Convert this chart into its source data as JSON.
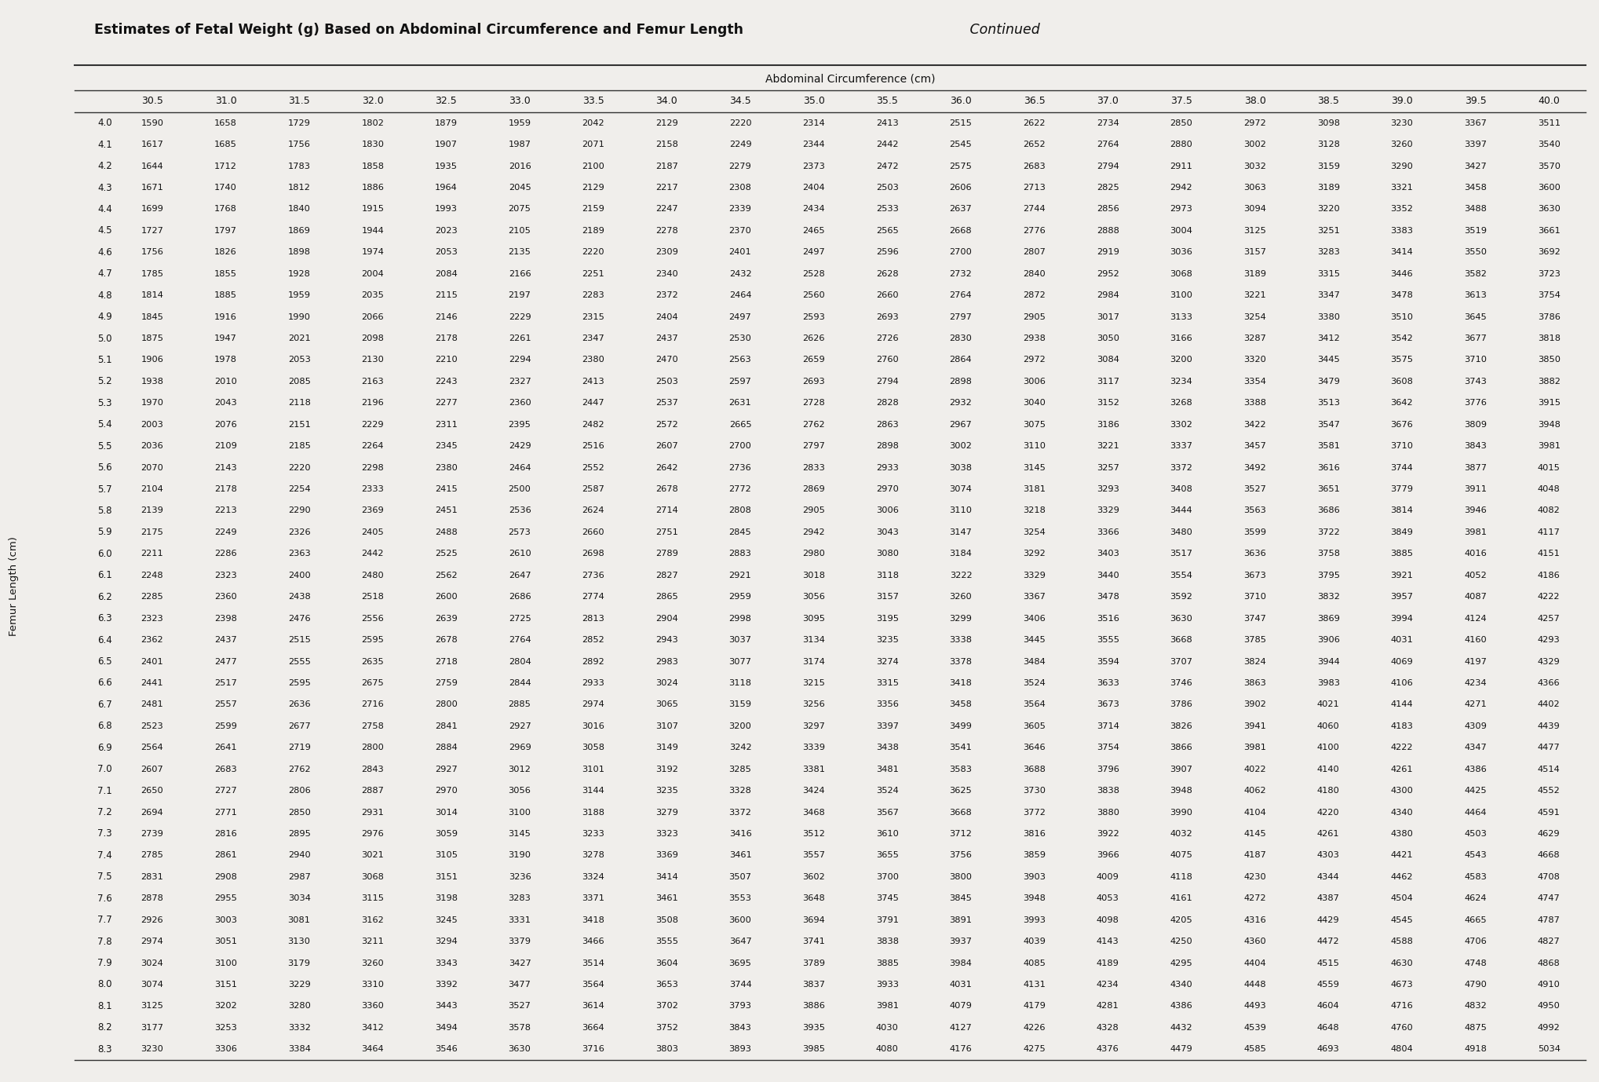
{
  "title_bold": "Estimates of Fetal Weight (g) Based on Abdominal Circumference and Femur Length",
  "title_italic": "Continued",
  "col_header_label": "Abdominal Circumference (cm)",
  "row_header_label": "Femur Length (cm)",
  "col_headers": [
    "30.5",
    "31.0",
    "31.5",
    "32.0",
    "32.5",
    "33.0",
    "33.5",
    "34.0",
    "34.5",
    "35.0",
    "35.5",
    "36.0",
    "36.5",
    "37.0",
    "37.5",
    "38.0",
    "38.5",
    "39.0",
    "39.5",
    "40.0"
  ],
  "row_headers": [
    "4.0",
    "4.1",
    "4.2",
    "4.3",
    "4.4",
    "4.5",
    "4.6",
    "4.7",
    "4.8",
    "4.9",
    "5.0",
    "5.1",
    "5.2",
    "5.3",
    "5.4",
    "5.5",
    "5.6",
    "5.7",
    "5.8",
    "5.9",
    "6.0",
    "6.1",
    "6.2",
    "6.3",
    "6.4",
    "6.5",
    "6.6",
    "6.7",
    "6.8",
    "6.9",
    "7.0",
    "7.1",
    "7.2",
    "7.3",
    "7.4",
    "7.5",
    "7.6",
    "7.7",
    "7.8",
    "7.9",
    "8.0",
    "8.1",
    "8.2",
    "8.3"
  ],
  "table_data": [
    [
      1590,
      1658,
      1729,
      1802,
      1879,
      1959,
      2042,
      2129,
      2220,
      2314,
      2413,
      2515,
      2622,
      2734,
      2850,
      2972,
      3098,
      3230,
      3367,
      3511
    ],
    [
      1617,
      1685,
      1756,
      1830,
      1907,
      1987,
      2071,
      2158,
      2249,
      2344,
      2442,
      2545,
      2652,
      2764,
      2880,
      3002,
      3128,
      3260,
      3397,
      3540
    ],
    [
      1644,
      1712,
      1783,
      1858,
      1935,
      2016,
      2100,
      2187,
      2279,
      2373,
      2472,
      2575,
      2683,
      2794,
      2911,
      3032,
      3159,
      3290,
      3427,
      3570
    ],
    [
      1671,
      1740,
      1812,
      1886,
      1964,
      2045,
      2129,
      2217,
      2308,
      2404,
      2503,
      2606,
      2713,
      2825,
      2942,
      3063,
      3189,
      3321,
      3458,
      3600
    ],
    [
      1699,
      1768,
      1840,
      1915,
      1993,
      2075,
      2159,
      2247,
      2339,
      2434,
      2533,
      2637,
      2744,
      2856,
      2973,
      3094,
      3220,
      3352,
      3488,
      3630
    ],
    [
      1727,
      1797,
      1869,
      1944,
      2023,
      2105,
      2189,
      2278,
      2370,
      2465,
      2565,
      2668,
      2776,
      2888,
      3004,
      3125,
      3251,
      3383,
      3519,
      3661
    ],
    [
      1756,
      1826,
      1898,
      1974,
      2053,
      2135,
      2220,
      2309,
      2401,
      2497,
      2596,
      2700,
      2807,
      2919,
      3036,
      3157,
      3283,
      3414,
      3550,
      3692
    ],
    [
      1785,
      1855,
      1928,
      2004,
      2084,
      2166,
      2251,
      2340,
      2432,
      2528,
      2628,
      2732,
      2840,
      2952,
      3068,
      3189,
      3315,
      3446,
      3582,
      3723
    ],
    [
      1814,
      1885,
      1959,
      2035,
      2115,
      2197,
      2283,
      2372,
      2464,
      2560,
      2660,
      2764,
      2872,
      2984,
      3100,
      3221,
      3347,
      3478,
      3613,
      3754
    ],
    [
      1845,
      1916,
      1990,
      2066,
      2146,
      2229,
      2315,
      2404,
      2497,
      2593,
      2693,
      2797,
      2905,
      3017,
      3133,
      3254,
      3380,
      3510,
      3645,
      3786
    ],
    [
      1875,
      1947,
      2021,
      2098,
      2178,
      2261,
      2347,
      2437,
      2530,
      2626,
      2726,
      2830,
      2938,
      3050,
      3166,
      3287,
      3412,
      3542,
      3677,
      3818
    ],
    [
      1906,
      1978,
      2053,
      2130,
      2210,
      2294,
      2380,
      2470,
      2563,
      2659,
      2760,
      2864,
      2972,
      3084,
      3200,
      3320,
      3445,
      3575,
      3710,
      3850
    ],
    [
      1938,
      2010,
      2085,
      2163,
      2243,
      2327,
      2413,
      2503,
      2597,
      2693,
      2794,
      2898,
      3006,
      3117,
      3234,
      3354,
      3479,
      3608,
      3743,
      3882
    ],
    [
      1970,
      2043,
      2118,
      2196,
      2277,
      2360,
      2447,
      2537,
      2631,
      2728,
      2828,
      2932,
      3040,
      3152,
      3268,
      3388,
      3513,
      3642,
      3776,
      3915
    ],
    [
      2003,
      2076,
      2151,
      2229,
      2311,
      2395,
      2482,
      2572,
      2665,
      2762,
      2863,
      2967,
      3075,
      3186,
      3302,
      3422,
      3547,
      3676,
      3809,
      3948
    ],
    [
      2036,
      2109,
      2185,
      2264,
      2345,
      2429,
      2516,
      2607,
      2700,
      2797,
      2898,
      3002,
      3110,
      3221,
      3337,
      3457,
      3581,
      3710,
      3843,
      3981
    ],
    [
      2070,
      2143,
      2220,
      2298,
      2380,
      2464,
      2552,
      2642,
      2736,
      2833,
      2933,
      3038,
      3145,
      3257,
      3372,
      3492,
      3616,
      3744,
      3877,
      4015
    ],
    [
      2104,
      2178,
      2254,
      2333,
      2415,
      2500,
      2587,
      2678,
      2772,
      2869,
      2970,
      3074,
      3181,
      3293,
      3408,
      3527,
      3651,
      3779,
      3911,
      4048
    ],
    [
      2139,
      2213,
      2290,
      2369,
      2451,
      2536,
      2624,
      2714,
      2808,
      2905,
      3006,
      3110,
      3218,
      3329,
      3444,
      3563,
      3686,
      3814,
      3946,
      4082
    ],
    [
      2175,
      2249,
      2326,
      2405,
      2488,
      2573,
      2660,
      2751,
      2845,
      2942,
      3043,
      3147,
      3254,
      3366,
      3480,
      3599,
      3722,
      3849,
      3981,
      4117
    ],
    [
      2211,
      2286,
      2363,
      2442,
      2525,
      2610,
      2698,
      2789,
      2883,
      2980,
      3080,
      3184,
      3292,
      3403,
      3517,
      3636,
      3758,
      3885,
      4016,
      4151
    ],
    [
      2248,
      2323,
      2400,
      2480,
      2562,
      2647,
      2736,
      2827,
      2921,
      3018,
      3118,
      3222,
      3329,
      3440,
      3554,
      3673,
      3795,
      3921,
      4052,
      4186
    ],
    [
      2285,
      2360,
      2438,
      2518,
      2600,
      2686,
      2774,
      2865,
      2959,
      3056,
      3157,
      3260,
      3367,
      3478,
      3592,
      3710,
      3832,
      3957,
      4087,
      4222
    ],
    [
      2323,
      2398,
      2476,
      2556,
      2639,
      2725,
      2813,
      2904,
      2998,
      3095,
      3195,
      3299,
      3406,
      3516,
      3630,
      3747,
      3869,
      3994,
      4124,
      4257
    ],
    [
      2362,
      2437,
      2515,
      2595,
      2678,
      2764,
      2852,
      2943,
      3037,
      3134,
      3235,
      3338,
      3445,
      3555,
      3668,
      3785,
      3906,
      4031,
      4160,
      4293
    ],
    [
      2401,
      2477,
      2555,
      2635,
      2718,
      2804,
      2892,
      2983,
      3077,
      3174,
      3274,
      3378,
      3484,
      3594,
      3707,
      3824,
      3944,
      4069,
      4197,
      4329
    ],
    [
      2441,
      2517,
      2595,
      2675,
      2759,
      2844,
      2933,
      3024,
      3118,
      3215,
      3315,
      3418,
      3524,
      3633,
      3746,
      3863,
      3983,
      4106,
      4234,
      4366
    ],
    [
      2481,
      2557,
      2636,
      2716,
      2800,
      2885,
      2974,
      3065,
      3159,
      3256,
      3356,
      3458,
      3564,
      3673,
      3786,
      3902,
      4021,
      4144,
      4271,
      4402
    ],
    [
      2523,
      2599,
      2677,
      2758,
      2841,
      2927,
      3016,
      3107,
      3200,
      3297,
      3397,
      3499,
      3605,
      3714,
      3826,
      3941,
      4060,
      4183,
      4309,
      4439
    ],
    [
      2564,
      2641,
      2719,
      2800,
      2884,
      2969,
      3058,
      3149,
      3242,
      3339,
      3438,
      3541,
      3646,
      3754,
      3866,
      3981,
      4100,
      4222,
      4347,
      4477
    ],
    [
      2607,
      2683,
      2762,
      2843,
      2927,
      3012,
      3101,
      3192,
      3285,
      3381,
      3481,
      3583,
      3688,
      3796,
      3907,
      4022,
      4140,
      4261,
      4386,
      4514
    ],
    [
      2650,
      2727,
      2806,
      2887,
      2970,
      3056,
      3144,
      3235,
      3328,
      3424,
      3524,
      3625,
      3730,
      3838,
      3948,
      4062,
      4180,
      4300,
      4425,
      4552
    ],
    [
      2694,
      2771,
      2850,
      2931,
      3014,
      3100,
      3188,
      3279,
      3372,
      3468,
      3567,
      3668,
      3772,
      3880,
      3990,
      4104,
      4220,
      4340,
      4464,
      4591
    ],
    [
      2739,
      2816,
      2895,
      2976,
      3059,
      3145,
      3233,
      3323,
      3416,
      3512,
      3610,
      3712,
      3816,
      3922,
      4032,
      4145,
      4261,
      4380,
      4503,
      4629
    ],
    [
      2785,
      2861,
      2940,
      3021,
      3105,
      3190,
      3278,
      3369,
      3461,
      3557,
      3655,
      3756,
      3859,
      3966,
      4075,
      4187,
      4303,
      4421,
      4543,
      4668
    ],
    [
      2831,
      2908,
      2987,
      3068,
      3151,
      3236,
      3324,
      3414,
      3507,
      3602,
      3700,
      3800,
      3903,
      4009,
      4118,
      4230,
      4344,
      4462,
      4583,
      4708
    ],
    [
      2878,
      2955,
      3034,
      3115,
      3198,
      3283,
      3371,
      3461,
      3553,
      3648,
      3745,
      3845,
      3948,
      4053,
      4161,
      4272,
      4387,
      4504,
      4624,
      4747
    ],
    [
      2926,
      3003,
      3081,
      3162,
      3245,
      3331,
      3418,
      3508,
      3600,
      3694,
      3791,
      3891,
      3993,
      4098,
      4205,
      4316,
      4429,
      4545,
      4665,
      4787
    ],
    [
      2974,
      3051,
      3130,
      3211,
      3294,
      3379,
      3466,
      3555,
      3647,
      3741,
      3838,
      3937,
      4039,
      4143,
      4250,
      4360,
      4472,
      4588,
      4706,
      4827
    ],
    [
      3024,
      3100,
      3179,
      3260,
      3343,
      3427,
      3514,
      3604,
      3695,
      3789,
      3885,
      3984,
      4085,
      4189,
      4295,
      4404,
      4515,
      4630,
      4748,
      4868
    ],
    [
      3074,
      3151,
      3229,
      3310,
      3392,
      3477,
      3564,
      3653,
      3744,
      3837,
      3933,
      4031,
      4131,
      4234,
      4340,
      4448,
      4559,
      4673,
      4790,
      4910
    ],
    [
      3125,
      3202,
      3280,
      3360,
      3443,
      3527,
      3614,
      3702,
      3793,
      3886,
      3981,
      4079,
      4179,
      4281,
      4386,
      4493,
      4604,
      4716,
      4832,
      4950
    ],
    [
      3177,
      3253,
      3332,
      3412,
      3494,
      3578,
      3664,
      3752,
      3843,
      3935,
      4030,
      4127,
      4226,
      4328,
      4432,
      4539,
      4648,
      4760,
      4875,
      4992
    ],
    [
      3230,
      3306,
      3384,
      3464,
      3546,
      3630,
      3716,
      3803,
      3893,
      3985,
      4080,
      4176,
      4275,
      4376,
      4479,
      4585,
      4693,
      4804,
      4918,
      5034
    ]
  ],
  "bg_color": "#f0eeeb",
  "header_line_color": "#333333",
  "text_color": "#111111",
  "title_fontsize": 12.5,
  "col_label_fontsize": 10,
  "header_fontsize": 9.0,
  "cell_fontsize": 8.2,
  "row_label_fontsize": 8.5,
  "row_header_fontsize": 9.5
}
